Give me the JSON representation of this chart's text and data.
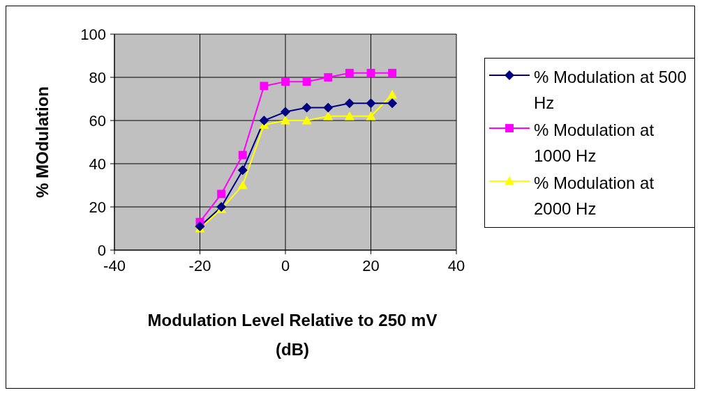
{
  "chart_data": {
    "type": "line",
    "xlabel": "Modulation Level Relative to 250 mV (dB)",
    "ylabel": "% MOdulation",
    "x": [
      -20,
      -15,
      -10,
      -5,
      0,
      5,
      10,
      15,
      20,
      25
    ],
    "series": [
      {
        "name": "% Modulation at 500 Hz",
        "color": "#000080",
        "marker": "diamond",
        "values": [
          11,
          20,
          37,
          60,
          64,
          66,
          66,
          68,
          68,
          68
        ]
      },
      {
        "name": "% Modulation at 1000 Hz",
        "color": "#ff00ff",
        "marker": "square",
        "values": [
          13,
          26,
          44,
          76,
          78,
          78,
          80,
          82,
          82,
          82
        ]
      },
      {
        "name": "% Modulation at 2000 Hz",
        "color": "#ffff00",
        "marker": "triangle",
        "values": [
          10,
          19,
          30,
          58,
          60,
          60,
          62,
          62,
          62,
          72
        ]
      }
    ],
    "xlim": [
      -40,
      40
    ],
    "xticks": [
      -40,
      -20,
      0,
      20,
      40
    ],
    "ylim": [
      0,
      100
    ],
    "yticks": [
      0,
      20,
      40,
      60,
      80,
      100
    ],
    "grid": true,
    "legend": "right",
    "line_style": "solid"
  }
}
